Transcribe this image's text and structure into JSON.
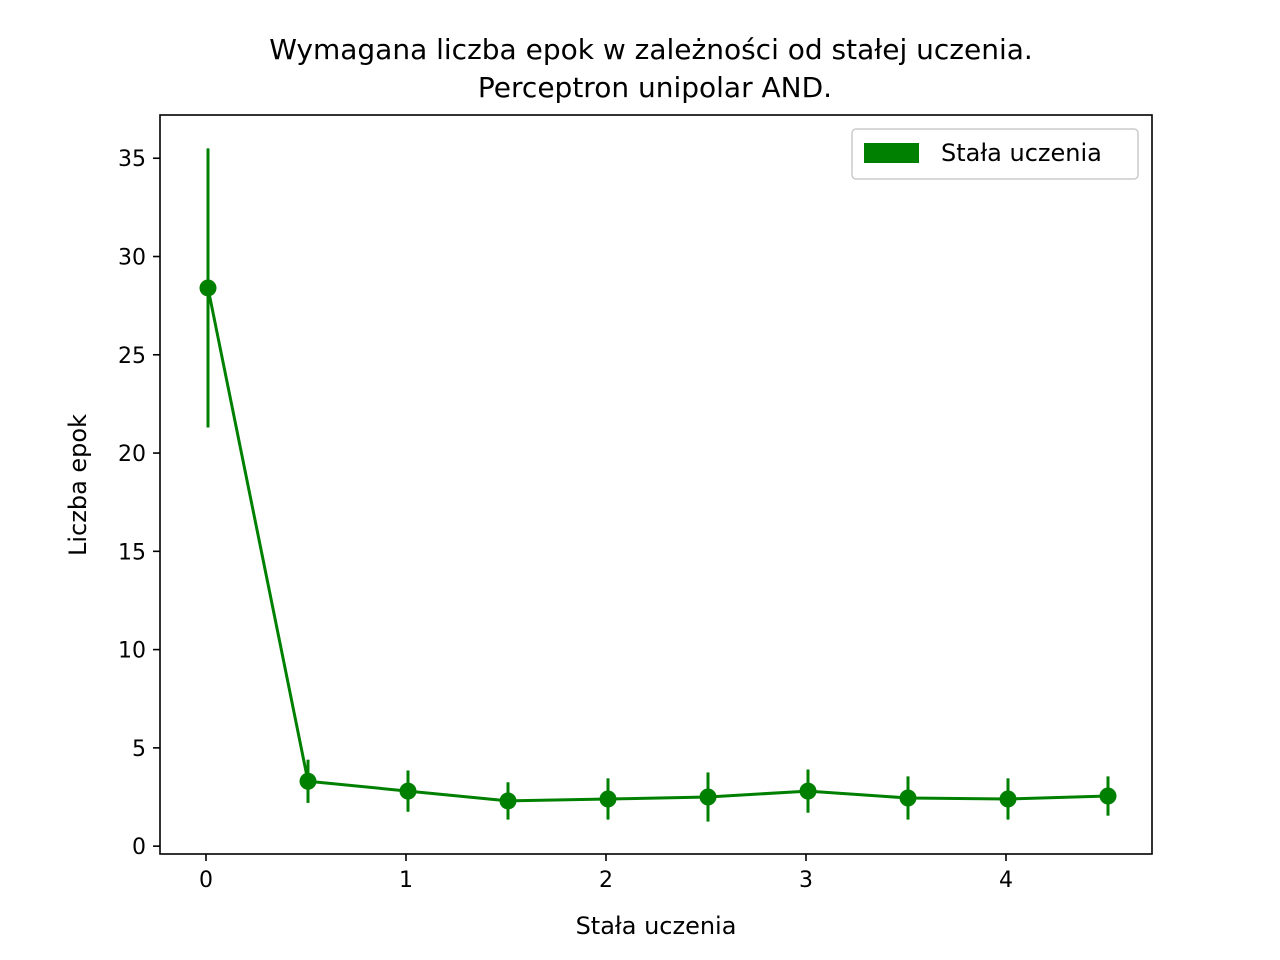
{
  "chart_data": {
    "type": "line",
    "title": "Wymagana liczba epok w zależności od stałej uczenia.",
    "subtitle": "Perceptron unipolar AND.",
    "xlabel": "Stała uczenia",
    "ylabel": "Liczba epok",
    "xlim": [
      -0.23,
      4.73
    ],
    "ylim": [
      -0.4,
      37.2
    ],
    "xticks": [
      0,
      1,
      2,
      3,
      4
    ],
    "yticks": [
      0,
      5,
      10,
      15,
      20,
      25,
      30,
      35
    ],
    "grid": false,
    "legend_position": "top-right",
    "color": "#008000",
    "series": [
      {
        "name": "Stała uczenia",
        "x": [
          0.01,
          0.51,
          1.01,
          1.51,
          2.01,
          2.51,
          3.01,
          3.51,
          4.01,
          4.51
        ],
        "y": [
          28.4,
          3.3,
          2.8,
          2.3,
          2.4,
          2.5,
          2.8,
          2.45,
          2.4,
          2.55
        ],
        "err": [
          7.1,
          1.1,
          1.05,
          0.95,
          1.05,
          1.25,
          1.1,
          1.1,
          1.05,
          1.0
        ]
      }
    ]
  }
}
